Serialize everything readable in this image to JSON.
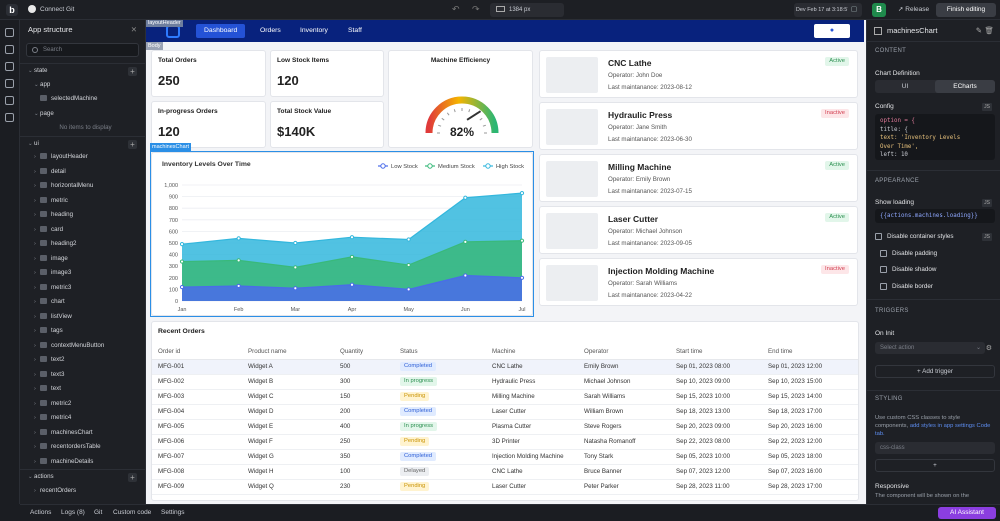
{
  "topbar": {
    "connect_git": "Connect Git",
    "viewport_width": "1384 px",
    "dev_badge": "Dev Feb 17 at 3:18:57 PM",
    "release": "Release",
    "finish_editing": "Finish editing",
    "logo_letter": "b",
    "bucket_letter": "B"
  },
  "left": {
    "title": "App structure",
    "search_placeholder": "Search",
    "sections": {
      "state": "state",
      "ui": "ui",
      "actions": "actions"
    },
    "state_items": [
      {
        "label": "app",
        "indent": 1
      },
      {
        "label": "selectedMachine",
        "indent": 2
      },
      {
        "label": "page",
        "indent": 1
      }
    ],
    "no_items": "No items to display",
    "ui_items": [
      "layoutHeader",
      "detail",
      "horizontalMenu",
      "metric",
      "heading",
      "card",
      "heading2",
      "image",
      "image3",
      "metric3",
      "chart",
      "listView",
      "tags",
      "contextMenuButton",
      "text2",
      "text3",
      "text",
      "metric2",
      "metric4",
      "machinesChart",
      "recentordersTable",
      "machineDetails"
    ],
    "action_items": [
      "recentOrders"
    ]
  },
  "bottombar": {
    "items": [
      "Actions",
      "Logs (8)",
      "Git",
      "Custom code",
      "Settings"
    ],
    "ai": "AI Assistant"
  },
  "app": {
    "header_badge": "layoutHeader",
    "body_badge": "Body",
    "nav": [
      "Dashboard",
      "Orders",
      "Inventory",
      "Staff"
    ],
    "metrics": [
      {
        "label": "Total Orders",
        "value": "250"
      },
      {
        "label": "Low Stock Items",
        "value": "120"
      },
      {
        "label": "In-progress Orders",
        "value": "120"
      },
      {
        "label": "Total Stock Value",
        "value": "$140K"
      }
    ],
    "gauge": {
      "title": "Machine Efficiency",
      "value_text": "82%",
      "value": 82
    },
    "machines": [
      {
        "name": "CNC Lathe",
        "operator": "Operator: John Doe",
        "date": "Last maintanance: 2023-08-12",
        "status": "Active"
      },
      {
        "name": "Hydraulic Press",
        "operator": "Operator: Jane Smith",
        "date": "Last maintanance: 2023-06-30",
        "status": "Inactive"
      },
      {
        "name": "Milling Machine",
        "operator": "Operator: Emily Brown",
        "date": "Last maintanance: 2023-07-15",
        "status": "Active"
      },
      {
        "name": "Laser Cutter",
        "operator": "Operator: Michael Johnson",
        "date": "Last maintanance: 2023-09-05",
        "status": "Active"
      },
      {
        "name": "Injection Molding Machine",
        "operator": "Operator: Sarah Williams",
        "date": "Last maintanance: 2023-04-22",
        "status": "Inactive"
      }
    ],
    "chart_badge": "machinesChart",
    "orders": {
      "title": "Recent Orders",
      "columns": [
        "Order id",
        "Product name",
        "Quantity",
        "Status",
        "Machine",
        "Operator",
        "Start time",
        "End time"
      ],
      "rows": [
        [
          "MFG-001",
          "Widget A",
          "500",
          "Completed",
          "CNC Lathe",
          "Emily Brown",
          "Sep 01, 2023 08:00",
          "Sep 01, 2023 12:00"
        ],
        [
          "MFG-002",
          "Widget B",
          "300",
          "In progress",
          "Hydraulic Press",
          "Michael Johnson",
          "Sep 10, 2023 09:00",
          "Sep 10, 2023 15:00"
        ],
        [
          "MFG-003",
          "Widget C",
          "150",
          "Pending",
          "Milling Machine",
          "Sarah Williams",
          "Sep 15, 2023 10:00",
          "Sep 15, 2023 14:00"
        ],
        [
          "MFG-004",
          "Widget D",
          "200",
          "Completed",
          "Laser Cutter",
          "William Brown",
          "Sep 18, 2023 13:00",
          "Sep 18, 2023 17:00"
        ],
        [
          "MFG-005",
          "Widget E",
          "400",
          "In progress",
          "Plasma Cutter",
          "Steve Rogers",
          "Sep 20, 2023 09:00",
          "Sep 20, 2023 16:00"
        ],
        [
          "MFG-006",
          "Widget F",
          "250",
          "Pending",
          "3D Printer",
          "Natasha Romanoff",
          "Sep 22, 2023 08:00",
          "Sep 22, 2023 12:00"
        ],
        [
          "MFG-007",
          "Widget G",
          "350",
          "Completed",
          "Injection Molding Machine",
          "Tony Stark",
          "Sep 05, 2023 10:00",
          "Sep 05, 2023 18:00"
        ],
        [
          "MFG-008",
          "Widget H",
          "100",
          "Delayed",
          "CNC Lathe",
          "Bruce Banner",
          "Sep 07, 2023 12:00",
          "Sep 07, 2023 16:00"
        ],
        [
          "MFG-009",
          "Widget Q",
          "230",
          "Pending",
          "Laser Cutter",
          "Peter Parker",
          "Sep 28, 2023 11:00",
          "Sep 28, 2023 17:00"
        ]
      ]
    }
  },
  "chart_data": {
    "type": "area",
    "title": "Inventory Levels Over Time",
    "categories": [
      "Jan",
      "Feb",
      "Mar",
      "Apr",
      "May",
      "Jun",
      "Jul"
    ],
    "ylim": [
      0,
      1000
    ],
    "yticks": [
      "0",
      "100",
      "200",
      "300",
      "400",
      "500",
      "600",
      "700",
      "800",
      "900",
      "1,000"
    ],
    "legend_position": "top-right",
    "stacked": true,
    "series": [
      {
        "name": "Low Stock",
        "color": "#4a6bea",
        "values": [
          120,
          130,
          110,
          140,
          100,
          220,
          200
        ]
      },
      {
        "name": "Medium Stock",
        "color": "#39b97a",
        "values": [
          220,
          220,
          180,
          240,
          210,
          290,
          320
        ]
      },
      {
        "name": "High Stock",
        "color": "#33b7dd",
        "values": [
          150,
          190,
          210,
          170,
          220,
          380,
          410
        ]
      }
    ]
  },
  "right": {
    "component": "machinesChart",
    "content": "CONTENT",
    "chart_definition": "Chart Definition",
    "tabs": [
      "UI",
      "ECharts"
    ],
    "config": "Config",
    "code_lines": [
      "option = {",
      "  title: {",
      "    text: 'Inventory Levels",
      "Over Time',",
      "    left: 10"
    ],
    "appearance": "APPEARANCE",
    "show_loading": "Show loading",
    "show_loading_value": "{{actions.machines.loading}}",
    "disable_container": "Disable container styles",
    "disable_padding": "Disable padding",
    "disable_shadow": "Disable shadow",
    "disable_border": "Disable border",
    "triggers": "TRIGGERS",
    "on_init": "On Init",
    "select_action": "Select action",
    "add_trigger": "Add trigger",
    "styling": "STYLING",
    "styling_desc_a": "Use custom CSS classes to style components,",
    "styling_desc_link": "add styles in app settings Code tab.",
    "css_placeholder": "css-class",
    "responsive": "Responsive",
    "responsive_desc": "The component will be shown on the",
    "js": "JS",
    "fx": "fx"
  }
}
